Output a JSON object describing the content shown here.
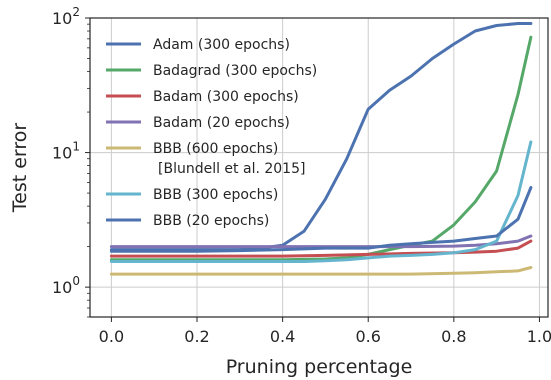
{
  "chart_data": {
    "type": "line",
    "xlabel": "Pruning percentage",
    "ylabel": "Test error",
    "yscale": "log",
    "xlim": [
      -0.05,
      1.02
    ],
    "ylim": [
      0.6,
      100
    ],
    "xticks": [
      0.0,
      0.2,
      0.4,
      0.6,
      0.8,
      1.0
    ],
    "xtick_labels": [
      "0.0",
      "0.2",
      "0.4",
      "0.6",
      "0.8",
      "1.0"
    ],
    "yticks": [
      1,
      10,
      100
    ],
    "ytick_labels": [
      {
        "base": "10",
        "exp": "0"
      },
      {
        "base": "10",
        "exp": "1"
      },
      {
        "base": "10",
        "exp": "2"
      }
    ],
    "grid": true,
    "legend_position": "upper-left",
    "series": [
      {
        "name": [
          "Adam (300 epochs)"
        ],
        "color": "#4c72b0",
        "x": [
          0.0,
          0.05,
          0.1,
          0.15,
          0.2,
          0.25,
          0.3,
          0.35,
          0.4,
          0.45,
          0.5,
          0.55,
          0.6,
          0.65,
          0.7,
          0.75,
          0.8,
          0.85,
          0.9,
          0.95,
          0.98
        ],
        "y": [
          1.9,
          1.9,
          1.9,
          1.9,
          1.9,
          1.9,
          1.9,
          1.95,
          2.05,
          2.6,
          4.5,
          9,
          21,
          29,
          37,
          50,
          64,
          80,
          88,
          91,
          91
        ]
      },
      {
        "name": [
          "Badagrad (300 epochs)"
        ],
        "color": "#55a868",
        "x": [
          0.0,
          0.1,
          0.2,
          0.3,
          0.4,
          0.5,
          0.55,
          0.6,
          0.65,
          0.7,
          0.75,
          0.8,
          0.85,
          0.9,
          0.95,
          0.98
        ],
        "y": [
          1.6,
          1.6,
          1.6,
          1.6,
          1.6,
          1.62,
          1.65,
          1.75,
          1.9,
          2.05,
          2.2,
          2.9,
          4.3,
          7.3,
          27,
          72
        ]
      },
      {
        "name": [
          "Badam (300 epochs)"
        ],
        "color": "#c44e52",
        "x": [
          0.0,
          0.1,
          0.2,
          0.3,
          0.4,
          0.5,
          0.6,
          0.7,
          0.8,
          0.85,
          0.9,
          0.95,
          0.98
        ],
        "y": [
          1.7,
          1.7,
          1.7,
          1.7,
          1.7,
          1.72,
          1.75,
          1.78,
          1.8,
          1.82,
          1.85,
          1.95,
          2.2
        ]
      },
      {
        "name": [
          "Badam (20 epochs)"
        ],
        "color": "#8172b2",
        "x": [
          0.0,
          0.1,
          0.2,
          0.3,
          0.4,
          0.5,
          0.6,
          0.7,
          0.8,
          0.85,
          0.9,
          0.95,
          0.98
        ],
        "y": [
          2.0,
          2.0,
          2.0,
          2.0,
          2.0,
          2.0,
          2.0,
          2.0,
          2.02,
          2.05,
          2.1,
          2.2,
          2.4
        ]
      },
      {
        "name": [
          "BBB (600 epochs)",
          "[Blundell et al. 2015]"
        ],
        "color": "#ccb974",
        "x": [
          0.0,
          0.1,
          0.2,
          0.3,
          0.4,
          0.5,
          0.6,
          0.7,
          0.8,
          0.85,
          0.9,
          0.95,
          0.98
        ],
        "y": [
          1.25,
          1.25,
          1.25,
          1.25,
          1.25,
          1.25,
          1.25,
          1.25,
          1.27,
          1.28,
          1.3,
          1.32,
          1.4
        ]
      },
      {
        "name": [
          "BBB (300 epochs)"
        ],
        "color": "#64b5cd",
        "x": [
          0.0,
          0.1,
          0.2,
          0.3,
          0.4,
          0.45,
          0.5,
          0.55,
          0.6,
          0.65,
          0.7,
          0.75,
          0.8,
          0.85,
          0.9,
          0.95,
          0.98
        ],
        "y": [
          1.55,
          1.55,
          1.55,
          1.55,
          1.55,
          1.55,
          1.57,
          1.6,
          1.65,
          1.7,
          1.72,
          1.75,
          1.8,
          1.9,
          2.2,
          4.8,
          12
        ]
      },
      {
        "name": [
          "BBB (20 epochs)"
        ],
        "color": "#4c72b0",
        "x": [
          0.0,
          0.1,
          0.2,
          0.3,
          0.4,
          0.5,
          0.6,
          0.65,
          0.7,
          0.75,
          0.8,
          0.85,
          0.9,
          0.95,
          0.98
        ],
        "y": [
          1.85,
          1.85,
          1.85,
          1.87,
          1.9,
          1.95,
          1.95,
          2.05,
          2.1,
          2.15,
          2.2,
          2.3,
          2.4,
          3.2,
          5.5
        ]
      }
    ]
  }
}
